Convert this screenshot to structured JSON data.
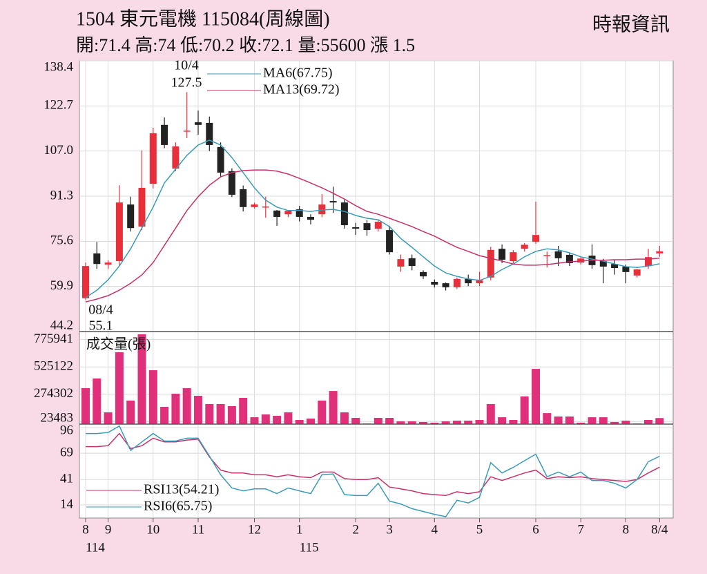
{
  "header": {
    "title": "1504  東元電機 115084(周線圖)",
    "source": "時報資訊",
    "quote": "開:71.4 高:74 低:70.2 收:72.1 量:55600 漲 1.5"
  },
  "chart_data": [
    {
      "type": "candlestick",
      "ylim": [
        44.2,
        138.4
      ],
      "yticks": [
        138.4,
        122.7,
        {
          "value": 107,
          "label": "107.0"
        },
        91.3,
        75.6,
        59.9,
        44.2
      ],
      "grid": true,
      "up_color": "#e8303a",
      "down_color": "#222222",
      "annotations": [
        "10/4",
        "127.5",
        "08/4",
        "55.1"
      ],
      "open": [
        55.8,
        71.4,
        67.5,
        68.7,
        88.4,
        80.7,
        95.6,
        116.1,
        100.9,
        113.9,
        117.0,
        116.8,
        108.4,
        100.0,
        93.7,
        87.5,
        87.7,
        86.3,
        85.0,
        86.7,
        84.1,
        85.0,
        89.6,
        89.1,
        80.5,
        81.9,
        80.0,
        79.5,
        66.8,
        69.7,
        64.9,
        61.5,
        61.0,
        59.6,
        62.5,
        61.0,
        63.0,
        73.0,
        68.7,
        73.0,
        75.4,
        70.6,
        72.1,
        70.9,
        68.2,
        70.6,
        68.7,
        67.7,
        66.8,
        63.7,
        67.0,
        71.4
      ],
      "high": [
        68.2,
        75.4,
        69.0,
        95.1,
        91.1,
        107.2,
        115.1,
        118.7,
        110.0,
        127.5,
        121.1,
        119.0,
        110.0,
        101.0,
        95.0,
        89.0,
        91.1,
        86.5,
        86.5,
        87.9,
        85.0,
        92.0,
        94.6,
        90.0,
        82.0,
        83.0,
        83.0,
        81.0,
        71.0,
        71.0,
        65.5,
        62.3,
        61.3,
        63.0,
        64.0,
        65.0,
        73.7,
        74.5,
        72.5,
        75.0,
        89.4,
        72.0,
        74.0,
        71.5,
        70.3,
        74.5,
        69.5,
        69.0,
        67.5,
        66.0,
        73.0,
        74.0
      ],
      "low": [
        55.1,
        66.0,
        66.0,
        67.0,
        79.0,
        79.5,
        94.0,
        108.0,
        100.0,
        111.5,
        112.7,
        107.0,
        98.0,
        91.0,
        86.0,
        87.0,
        83.8,
        81.0,
        84.0,
        82.5,
        81.5,
        84.0,
        85.5,
        80.0,
        77.8,
        77.5,
        79.0,
        71.0,
        65.0,
        65.5,
        62.5,
        59.5,
        58.5,
        59.0,
        60.0,
        60.0,
        62.0,
        68.0,
        68.0,
        72.0,
        74.7,
        66.5,
        67.0,
        67.0,
        67.5,
        66.0,
        61.0,
        64.0,
        61.0,
        63.0,
        66.0,
        70.2
      ],
      "close": [
        67.0,
        67.7,
        68.2,
        89.1,
        80.2,
        94.2,
        113.2,
        109.1,
        108.6,
        114.1,
        116.1,
        109.1,
        99.5,
        91.8,
        87.5,
        88.4,
        87.7,
        84.1,
        86.2,
        84.1,
        83.1,
        88.4,
        89.1,
        81.2,
        80.0,
        79.5,
        82.4,
        71.8,
        69.4,
        67.0,
        63.4,
        60.5,
        59.6,
        62.5,
        61.0,
        62.0,
        72.6,
        69.2,
        71.8,
        74.4,
        77.8,
        70.8,
        69.7,
        68.0,
        69.6,
        67.3,
        66.8,
        66.3,
        64.9,
        65.8,
        70.1,
        72.1
      ],
      "series": [
        {
          "name": "MA6(67.75)",
          "color": "#3a9ab8",
          "values": [
            56,
            58.6,
            62.2,
            67,
            73,
            80.2,
            87.5,
            95.9,
            100.7,
            105.5,
            109.1,
            110.8,
            109.1,
            104.7,
            99.5,
            94.2,
            89.9,
            87.5,
            86.3,
            86.3,
            86.0,
            86.5,
            86.7,
            86.0,
            84.6,
            83.6,
            83.1,
            80.7,
            76.6,
            73.5,
            70.2,
            67,
            64.6,
            63.4,
            62.5,
            62,
            63.4,
            65.8,
            67.7,
            70.2,
            72.1,
            73,
            72.6,
            71.6,
            70.2,
            69.4,
            68.7,
            67.7,
            66.8,
            66.5,
            67,
            67.75
          ]
        },
        {
          "name": "MA13(69.72)",
          "color": "#c8306a",
          "values": [
            54.5,
            55.5,
            56.7,
            58.6,
            61,
            63.9,
            68.2,
            74.2,
            80.2,
            86.3,
            91.1,
            95.1,
            98,
            99.5,
            100.2,
            100.4,
            100.4,
            100,
            99,
            97.5,
            95.9,
            94.2,
            92.3,
            90.3,
            88,
            86,
            85,
            83.6,
            82.2,
            80.7,
            79,
            77.4,
            75.4,
            73.5,
            72.1,
            70.6,
            69.7,
            68.7,
            67.7,
            67.3,
            67.3,
            67.5,
            68,
            68.5,
            68.7,
            69,
            69,
            69.2,
            69.2,
            69.4,
            69.4,
            69.72
          ]
        }
      ]
    },
    {
      "type": "bar",
      "title": "成交量(張)",
      "color": "#e0307a",
      "ylim": [
        0,
        850000
      ],
      "yticks": [
        775941,
        525122,
        274302,
        23483
      ],
      "grid": true,
      "values": [
        330000,
        419000,
        108000,
        660000,
        216000,
        825000,
        495000,
        159000,
        279000,
        330000,
        260000,
        184000,
        184000,
        165000,
        241000,
        63000,
        89000,
        76000,
        108000,
        38000,
        51000,
        216000,
        304000,
        108000,
        57000,
        6000,
        57000,
        57000,
        25000,
        25000,
        19000,
        13000,
        25000,
        32000,
        32000,
        38000,
        184000,
        63000,
        38000,
        254000,
        507000,
        101000,
        70000,
        70000,
        13000,
        63000,
        63000,
        19000,
        32000,
        6000,
        38000,
        55600
      ]
    },
    {
      "type": "line",
      "ylim": [
        0,
        100
      ],
      "yticks": [
        96,
        69,
        41,
        14
      ],
      "grid": true,
      "categories": [
        "8",
        null,
        "9",
        null,
        null,
        null,
        "10",
        null,
        null,
        null,
        "11",
        null,
        null,
        null,
        null,
        "12",
        null,
        null,
        null,
        "1",
        null,
        null,
        null,
        null,
        "2",
        null,
        null,
        "3",
        null,
        null,
        null,
        "4",
        null,
        null,
        null,
        "5",
        null,
        null,
        null,
        null,
        "6",
        null,
        null,
        null,
        "7",
        null,
        null,
        null,
        "8",
        null,
        null,
        "8/4"
      ],
      "year_categories": [
        "114",
        null,
        null,
        null,
        null,
        null,
        null,
        null,
        null,
        null,
        null,
        null,
        null,
        null,
        null,
        null,
        null,
        null,
        null,
        "115",
        null,
        null,
        null,
        null,
        null,
        null,
        null,
        null,
        null,
        null,
        null,
        null,
        null,
        null,
        null,
        null,
        null,
        null,
        null,
        null,
        null,
        null,
        null,
        null,
        null,
        null,
        null,
        null,
        null,
        null,
        null,
        null
      ],
      "series": [
        {
          "name": "RSI13(54.21)",
          "color": "#c8306a",
          "values": [
            76,
            76,
            77,
            90,
            74,
            77,
            85,
            81,
            81,
            83,
            84,
            65,
            51,
            48,
            48,
            46,
            46,
            44,
            46,
            44,
            43,
            49,
            49,
            42,
            41,
            41,
            43,
            33,
            31,
            29,
            26,
            25,
            24,
            28,
            26,
            28,
            44,
            40,
            44,
            48,
            51,
            42,
            44,
            43,
            44,
            42,
            41,
            40,
            39,
            41,
            48,
            54.21
          ]
        },
        {
          "name": "RSI6(65.75)",
          "color": "#3a9ab8",
          "values": [
            90,
            90,
            91,
            98,
            72,
            81,
            90,
            82,
            82,
            85,
            85,
            66,
            46,
            32,
            29,
            31,
            31,
            26,
            32,
            29,
            26,
            46,
            47,
            25,
            24,
            24,
            37,
            18,
            15,
            10,
            7,
            4,
            1.5,
            19,
            16,
            22,
            59,
            48,
            54,
            61,
            68,
            44,
            49,
            44,
            49,
            40,
            40,
            37,
            32,
            41,
            60,
            65.75
          ]
        }
      ]
    }
  ]
}
